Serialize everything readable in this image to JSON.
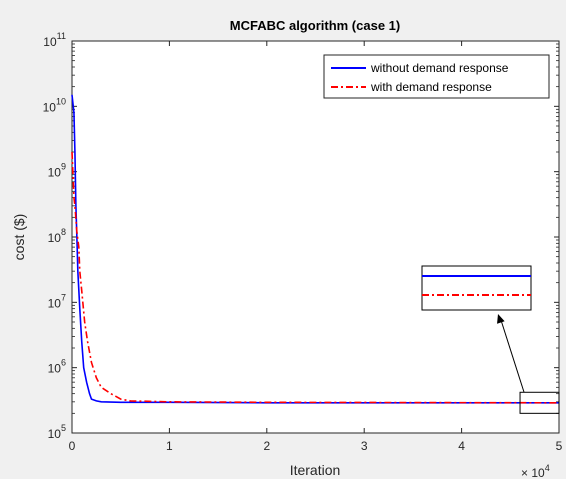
{
  "chart_data": {
    "type": "line",
    "title": "MCFABC algorithm  (case 1)",
    "xlabel": "Iteration",
    "ylabel": "cost ($)",
    "x_multiplier": "× 10",
    "x_multiplier_exp": "4",
    "xlim": [
      0,
      5
    ],
    "ylim": [
      100000,
      100000000000
    ],
    "yscale": "log",
    "grid": false,
    "legend_position": "top-right",
    "xticks": [
      "0",
      "1",
      "2",
      "3",
      "4",
      "5"
    ],
    "yticks": [
      {
        "base": "10",
        "exp": "5"
      },
      {
        "base": "10",
        "exp": "6"
      },
      {
        "base": "10",
        "exp": "7"
      },
      {
        "base": "10",
        "exp": "8"
      },
      {
        "base": "10",
        "exp": "9"
      },
      {
        "base": "10",
        "exp": "10"
      },
      {
        "base": "10",
        "exp": "11"
      }
    ],
    "series": [
      {
        "name": "without demand response",
        "color": "#0000ff",
        "style": "solid",
        "x": [
          0,
          0.02,
          0.03,
          0.04,
          0.05,
          0.06,
          0.08,
          0.1,
          0.12,
          0.15,
          0.18,
          0.2,
          0.25,
          0.3,
          0.5,
          1,
          2,
          5
        ],
        "y": [
          15000000000,
          8000000000,
          2000000000,
          300000000,
          100000000,
          30000000,
          8000000,
          2500000,
          1000000,
          600000,
          400000,
          330000,
          310000,
          300000,
          295000,
          295000,
          290000,
          290000
        ]
      },
      {
        "name": "with demand response",
        "color": "#ff0000",
        "style": "dash-dot",
        "x": [
          0,
          0.02,
          0.03,
          0.05,
          0.07,
          0.08,
          0.1,
          0.13,
          0.16,
          0.2,
          0.25,
          0.3,
          0.4,
          0.5,
          0.6,
          1,
          2,
          5
        ],
        "y": [
          2000000000,
          400000000,
          300000000,
          120000000,
          70000000,
          30000000,
          15000000,
          5000000,
          2500000,
          1200000,
          700000,
          500000,
          400000,
          330000,
          310000,
          300000,
          295000,
          290000
        ]
      }
    ],
    "annotation": {
      "type": "zoom-inset",
      "region_x": [
        4.6,
        5
      ],
      "region_y": [
        200000,
        420000
      ]
    }
  },
  "colors": {
    "background": "#f0f0f0",
    "axes": "#262626",
    "plot_area": "#ffffff"
  }
}
